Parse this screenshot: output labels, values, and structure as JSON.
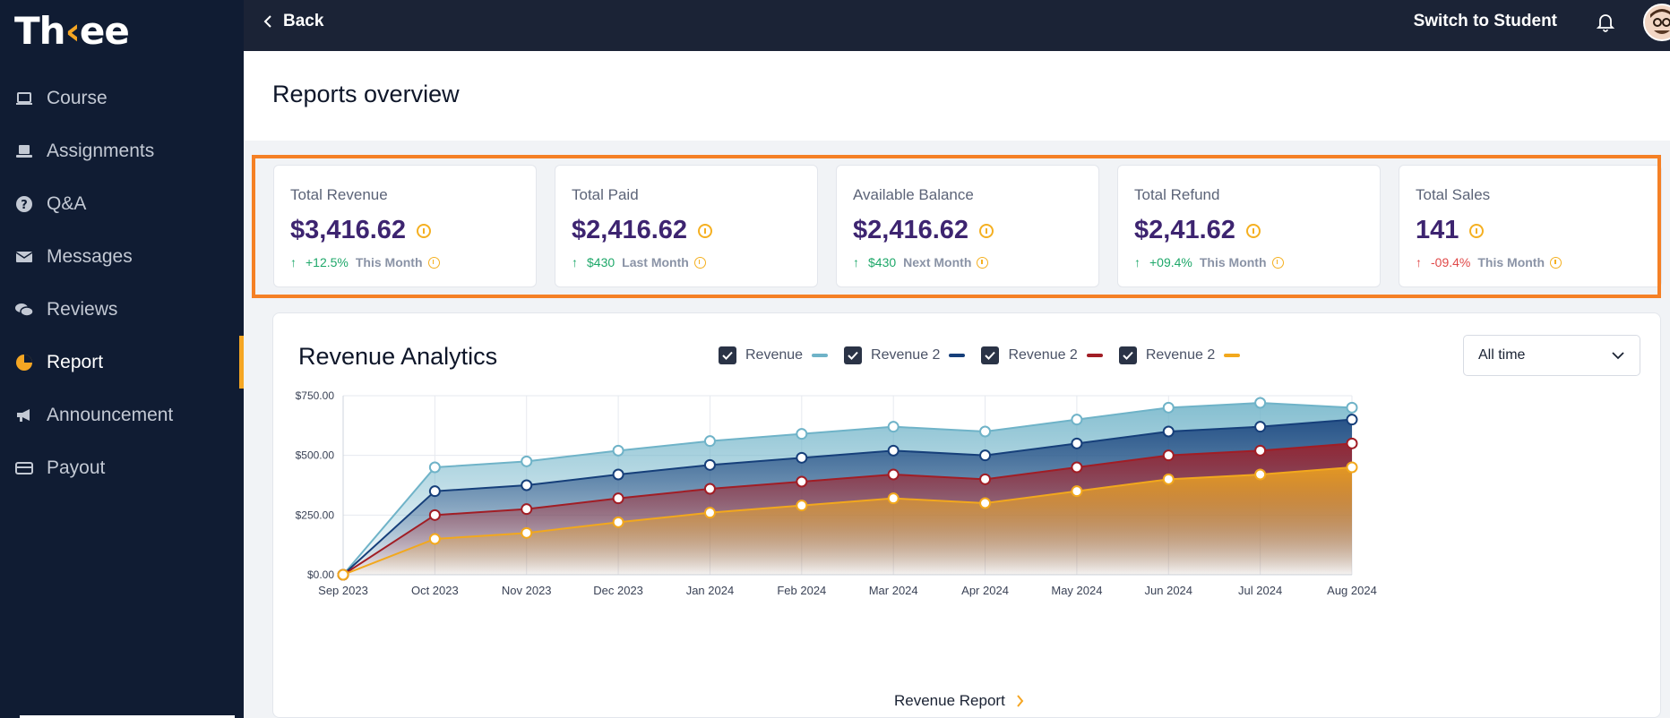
{
  "brand": {
    "name_prefix": "Th",
    "name_accent": "‹",
    "name_suffix": "ee",
    "accent_color": "#f5a623"
  },
  "sidebar": {
    "items": [
      {
        "label": "Course",
        "icon": "laptop-icon",
        "active": false
      },
      {
        "label": "Assignments",
        "icon": "assignment-icon",
        "active": false
      },
      {
        "label": "Q&A",
        "icon": "question-icon",
        "active": false
      },
      {
        "label": "Messages",
        "icon": "envelope-icon",
        "active": false
      },
      {
        "label": "Reviews",
        "icon": "chat-bubbles-icon",
        "active": false
      },
      {
        "label": "Report",
        "icon": "pie-chart-icon",
        "active": true
      },
      {
        "label": "Announcement",
        "icon": "megaphone-icon",
        "active": false
      },
      {
        "label": "Payout",
        "icon": "card-icon",
        "active": false
      }
    ]
  },
  "topbar": {
    "back_label": "Back",
    "switch_label": "Switch to Student"
  },
  "page": {
    "title": "Reports overview"
  },
  "cards": [
    {
      "label": "Total Revenue",
      "value": "$3,416.62",
      "trend": "+12.5%",
      "period": "This Month",
      "direction": "up"
    },
    {
      "label": "Total Paid",
      "value": "$2,416.62",
      "trend": "$430",
      "period": "Last Month",
      "direction": "up"
    },
    {
      "label": "Available Balance",
      "value": "$2,416.62",
      "trend": "$430",
      "period": "Next Month",
      "direction": "up"
    },
    {
      "label": "Total Refund",
      "value": "$2,41.62",
      "trend": "+09.4%",
      "period": "This Month",
      "direction": "up"
    },
    {
      "label": "Total Sales",
      "value": "141",
      "trend": "-09.4%",
      "period": "This Month",
      "direction": "down"
    }
  ],
  "analytics": {
    "title": "Revenue Analytics",
    "legend": [
      {
        "label": "Revenue",
        "color": "#6fb3c8",
        "checked": true
      },
      {
        "label": "Revenue 2",
        "color": "#163f7a",
        "checked": true
      },
      {
        "label": "Revenue 2",
        "color": "#a11d25",
        "checked": true
      },
      {
        "label": "Revenue 2",
        "color": "#f2a81d",
        "checked": true
      }
    ],
    "range_select": "All time",
    "report_link": "Revenue Report"
  },
  "chart_data": {
    "type": "area",
    "x": [
      "Sep 2023",
      "Oct 2023",
      "Nov 2023",
      "Dec 2023",
      "Jan 2024",
      "Feb 2024",
      "Mar 2024",
      "Apr 2024",
      "May 2024",
      "Jun 2024",
      "Jul 2024",
      "Aug 2024"
    ],
    "yticks": [
      "$0.00",
      "$250.00",
      "$500.00",
      "$750.00"
    ],
    "ylim": [
      0,
      750
    ],
    "grid": true,
    "series": [
      {
        "name": "Revenue",
        "color": "#6fb3c8",
        "values": [
          0,
          450,
          475,
          520,
          560,
          590,
          620,
          600,
          650,
          700,
          720,
          700
        ]
      },
      {
        "name": "Revenue 2",
        "color": "#163f7a",
        "values": [
          0,
          350,
          375,
          420,
          460,
          490,
          520,
          500,
          550,
          600,
          620,
          650
        ]
      },
      {
        "name": "Revenue 2",
        "color": "#a11d25",
        "values": [
          0,
          250,
          275,
          320,
          360,
          390,
          420,
          400,
          450,
          500,
          520,
          550
        ]
      },
      {
        "name": "Revenue 2",
        "color": "#f2a81d",
        "values": [
          0,
          150,
          175,
          220,
          260,
          290,
          320,
          300,
          350,
          400,
          420,
          450
        ]
      }
    ]
  }
}
